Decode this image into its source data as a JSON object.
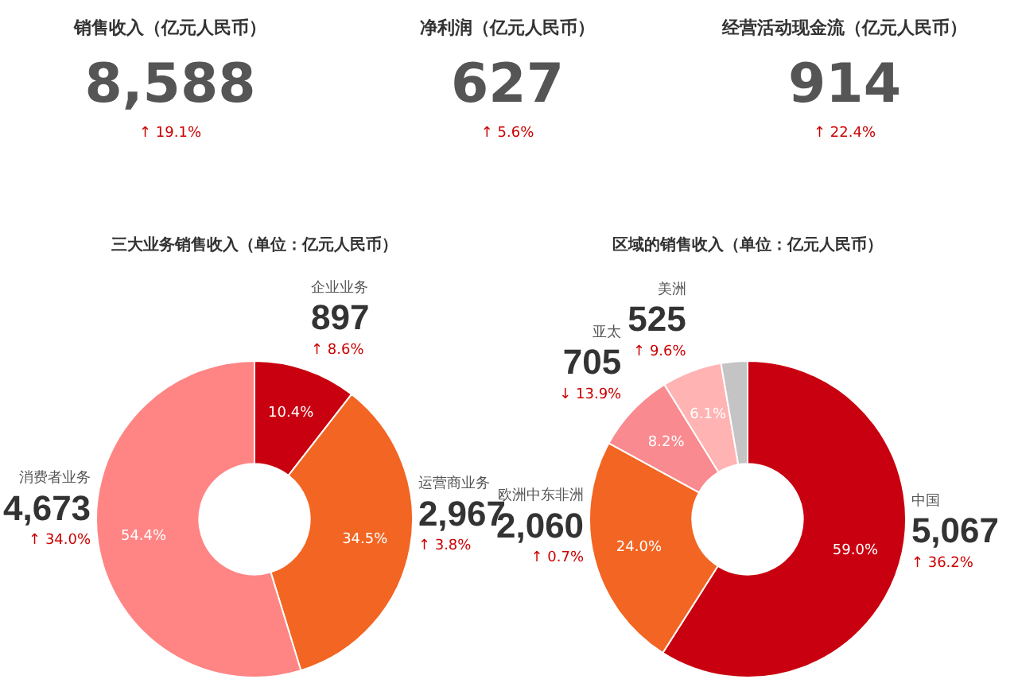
{
  "chart_data": [
    {
      "type": "other",
      "title": "销售收入（亿元人民币）",
      "annotations": [
        "8,588",
        "↑ 19.1%"
      ]
    },
    {
      "type": "other",
      "title": "净利润（亿元人民币）",
      "annotations": [
        "627",
        "↑ 5.6%"
      ]
    },
    {
      "type": "other",
      "title": "经营活动现金流（亿元人民币）",
      "annotations": [
        "914",
        "↑ 22.4%"
      ]
    },
    {
      "type": "donut",
      "title": "三大业务销售收入（单位：亿元人民币）",
      "categories": [
        "企业业务",
        "运营商业务",
        "消费者业务"
      ],
      "values": [
        897,
        2967,
        4673
      ],
      "colors": [
        "#c9000f",
        "#f26522",
        "#ff8585"
      ],
      "value_labels": [
        "897",
        "2,967",
        "4,673"
      ],
      "legend": false,
      "annotations": [
        {
          "text": "10.4%",
          "x": "企业业务"
        },
        {
          "text": "↑ 8.6%",
          "x": "企业业务"
        },
        {
          "text": "34.5%",
          "x": "运营商业务"
        },
        {
          "text": "↑ 3.8%",
          "x": "运营商业务"
        },
        {
          "text": "54.4%",
          "x": "消费者业务"
        },
        {
          "text": "↑ 34.0%",
          "x": "消费者业务"
        }
      ]
    },
    {
      "type": "donut",
      "title": "区域的销售收入（单位：亿元人民币）",
      "categories": [
        "中国",
        "欧洲中东非洲",
        "亚太",
        "美洲",
        null
      ],
      "values": [
        5067,
        2060,
        705,
        525,
        231
      ],
      "colors": [
        "#c9000f",
        "#f26522",
        "#f98a8f",
        "#ffb3b3",
        "#c4c4c4"
      ],
      "value_labels": [
        "5,067",
        "2,060",
        "705",
        "525",
        null
      ],
      "legend": false,
      "annotations": [
        {
          "text": "59.0%",
          "x": "中国"
        },
        {
          "text": "↑ 36.2%",
          "x": "中国"
        },
        {
          "text": "24.0%",
          "x": "欧洲中东非洲"
        },
        {
          "text": "↑ 0.7%",
          "x": "欧洲中东非洲"
        },
        {
          "text": "8.2%",
          "x": "亚太"
        },
        {
          "text": "↓ 13.9%",
          "x": "亚太"
        },
        {
          "text": "6.1%",
          "x": "美洲"
        },
        {
          "text": "↑ 9.6%",
          "x": "美洲"
        }
      ]
    }
  ]
}
